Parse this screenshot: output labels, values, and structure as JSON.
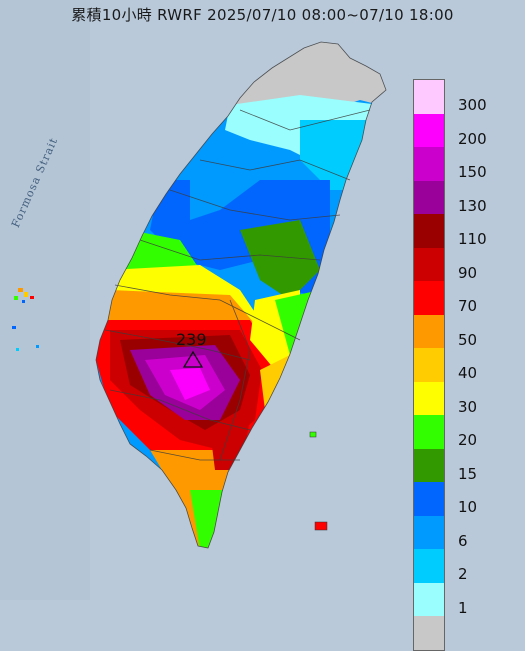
{
  "title": "累積10小時 RWRF 2025/07/10 08:00~07/10 18:00",
  "map_labels": {
    "strait": "Formosa Strait",
    "peak_value": "239"
  },
  "legend": {
    "items": [
      {
        "label": "300",
        "color": "#fec9fe"
      },
      {
        "label": "200",
        "color": "#fd00fd"
      },
      {
        "label": "150",
        "color": "#cc00cc"
      },
      {
        "label": "130",
        "color": "#9a009a"
      },
      {
        "label": "110",
        "color": "#9a0000"
      },
      {
        "label": "90",
        "color": "#cc0000"
      },
      {
        "label": "70",
        "color": "#fe0000"
      },
      {
        "label": "50",
        "color": "#fe9900"
      },
      {
        "label": "40",
        "color": "#fecc00"
      },
      {
        "label": "30",
        "color": "#fefe00"
      },
      {
        "label": "20",
        "color": "#33fe00"
      },
      {
        "label": "15",
        "color": "#339900"
      },
      {
        "label": "10",
        "color": "#0066fe"
      },
      {
        "label": "6",
        "color": "#0099fe"
      },
      {
        "label": "2",
        "color": "#00ccfe"
      },
      {
        "label": "1",
        "color": "#9afefe"
      },
      {
        "label": "",
        "color": "#c8c8c8"
      }
    ]
  }
}
